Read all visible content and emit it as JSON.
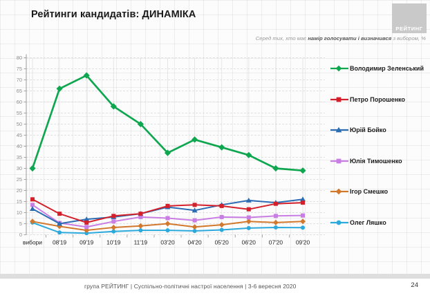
{
  "header": {
    "title": "Рейтинги кандидатів: ДИНАМІКА",
    "logo_text": "РЕЙТИНГ",
    "subtitle_prefix": "Серед тих, хто має ",
    "subtitle_bold": "намір голосувати і визначився",
    "subtitle_suffix": " з вибором, %"
  },
  "footer": {
    "text": "група РЕЙТИНГ |  Суспільно-політичні настрої населення  | 3-6 вересня  2020",
    "page_number": "24"
  },
  "chart_data": {
    "type": "line",
    "title": "Рейтинги кандидатів: ДИНАМІКА",
    "subtitle": "Серед тих, хто має намір голосувати і визначився з вибором, %",
    "categories": [
      "вибори",
      "08'19",
      "09'19",
      "10'19",
      "11'19",
      "03'20",
      "04'20",
      "05'20",
      "06'20",
      "07'20",
      "09'20"
    ],
    "ylim": [
      0,
      80
    ],
    "ytick_step": 5,
    "grid": true,
    "legend_position": "right",
    "series": [
      {
        "name": "Володимир Зеленський",
        "color": "#0fa650",
        "marker": "diamond",
        "values": [
          30,
          66,
          72,
          58,
          50,
          37,
          43,
          39.5,
          36,
          30,
          29
        ]
      },
      {
        "name": "Петро Порошенко",
        "color": "#d3202a",
        "marker": "square",
        "values": [
          16,
          9.5,
          5.5,
          8.5,
          9.5,
          13,
          13.5,
          13,
          11.5,
          14,
          14.5
        ]
      },
      {
        "name": "Юрій Бойко",
        "color": "#2b6cb3",
        "marker": "triangle",
        "values": [
          11.7,
          5,
          7,
          8,
          9.5,
          12.5,
          11,
          13.5,
          15.5,
          14.5,
          16
        ]
      },
      {
        "name": "Юлія Тимошенко",
        "color": "#c97ee3",
        "marker": "square",
        "values": [
          13.5,
          5.3,
          3.5,
          6,
          8,
          7.5,
          6.5,
          8,
          7.8,
          8.5,
          8.7
        ]
      },
      {
        "name": "Ігор Смешко",
        "color": "#d2782c",
        "marker": "diamond",
        "values": [
          6,
          3.8,
          2,
          3.3,
          4,
          5,
          3.5,
          4.5,
          6,
          5.5,
          6
        ]
      },
      {
        "name": "Олег Ляшко",
        "color": "#2ba9dd",
        "marker": "circle",
        "values": [
          5.5,
          1,
          0.7,
          1.5,
          2,
          2,
          1.7,
          2.2,
          3,
          3.3,
          3.2
        ]
      }
    ]
  }
}
